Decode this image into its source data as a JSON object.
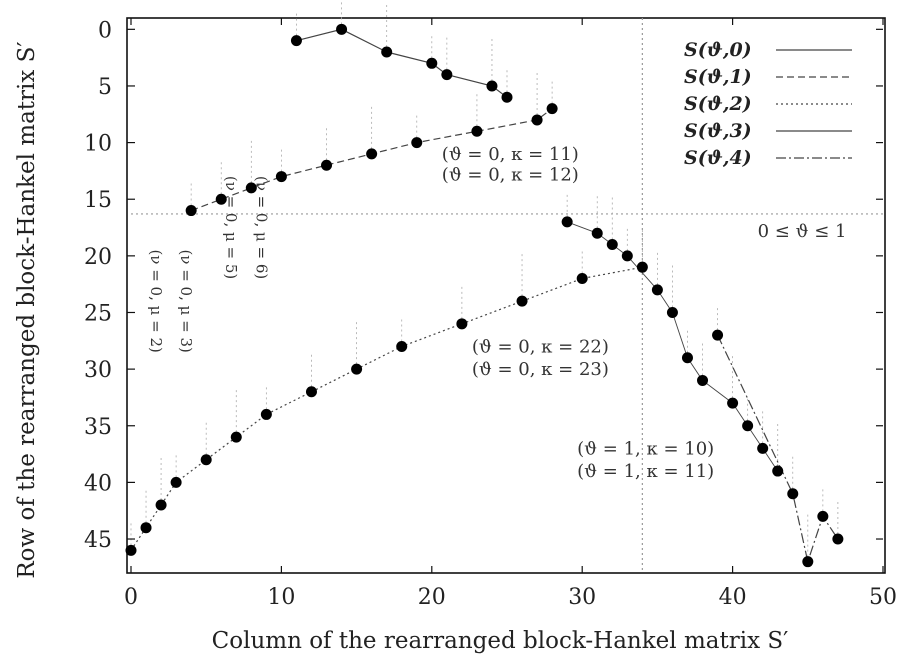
{
  "chart_data": {
    "type": "scatter",
    "xlabel": "Column of the rearranged block-Hankel matrix S′",
    "ylabel": "Row of the rearranged block-Hankel matrix S′",
    "xlim": [
      0,
      50
    ],
    "ylim": [
      48,
      -1
    ],
    "y_inverted": true,
    "grid": false,
    "legend_position": "top-right",
    "x_ticks": [
      "0",
      "10",
      "20",
      "30",
      "40",
      "50"
    ],
    "x_tick_values": [
      0,
      10,
      20,
      30,
      40,
      50
    ],
    "y_ticks": [
      "0",
      "5",
      "10",
      "15",
      "20",
      "25",
      "30",
      "35",
      "40",
      "45"
    ],
    "y_tick_values": [
      0,
      5,
      10,
      15,
      20,
      25,
      30,
      35,
      40,
      45
    ],
    "series": [
      {
        "name": "S(ϑ,0)",
        "style": "solid",
        "points": [
          [
            11,
            1
          ],
          [
            14,
            0
          ],
          [
            17,
            2
          ],
          [
            20,
            3
          ],
          [
            21,
            4
          ],
          [
            24,
            5
          ],
          [
            25,
            6
          ]
        ]
      },
      {
        "name": "S(ϑ,1)",
        "style": "dashed",
        "points": [
          [
            4,
            16
          ],
          [
            6,
            15
          ],
          [
            8,
            14
          ],
          [
            10,
            13
          ],
          [
            13,
            12
          ],
          [
            16,
            11
          ],
          [
            19,
            10
          ],
          [
            23,
            9
          ],
          [
            27,
            8
          ],
          [
            28,
            7
          ]
        ]
      },
      {
        "name": "S(ϑ,2)",
        "style": "dotted",
        "points": [
          [
            0,
            46
          ],
          [
            1,
            44
          ],
          [
            2,
            42
          ],
          [
            3,
            40
          ],
          [
            5,
            38
          ],
          [
            7,
            36
          ],
          [
            9,
            34
          ],
          [
            12,
            32
          ],
          [
            15,
            30
          ],
          [
            18,
            28
          ],
          [
            22,
            26
          ],
          [
            26,
            24
          ],
          [
            30,
            22
          ],
          [
            34,
            21
          ]
        ]
      },
      {
        "name": "S(ϑ,3)",
        "style": "thin-solid",
        "points": [
          [
            29,
            17
          ],
          [
            31,
            18
          ],
          [
            32,
            19
          ],
          [
            33,
            20
          ],
          [
            35,
            23
          ],
          [
            36,
            25
          ],
          [
            37,
            29
          ],
          [
            38,
            31
          ],
          [
            40,
            33
          ],
          [
            41,
            35
          ],
          [
            42,
            37
          ],
          [
            43,
            39
          ]
        ]
      },
      {
        "name": "S(ϑ,4)",
        "style": "dash-dot",
        "points": [
          [
            39,
            27
          ],
          [
            44,
            41
          ],
          [
            45,
            47
          ],
          [
            46,
            43
          ],
          [
            47,
            45
          ]
        ]
      }
    ],
    "annotations": [
      {
        "text": "(ϑ = 0, κ = 11)",
        "x": 20,
        "y": 11
      },
      {
        "text": "(ϑ = 0, κ = 12)",
        "x": 20,
        "y": 12.8
      },
      {
        "text": "(ϑ = 0, κ = 22)",
        "x": 22,
        "y": 28
      },
      {
        "text": "(ϑ = 0, κ = 23)",
        "x": 22,
        "y": 30
      },
      {
        "text": "(ϑ = 1, κ = 10)",
        "x": 29,
        "y": 37
      },
      {
        "text": "(ϑ = 1, κ = 11)",
        "x": 29,
        "y": 39
      },
      {
        "text": "0 ≤ ϑ ≤ 1",
        "x": 41,
        "y": 17.8
      },
      {
        "text": "(ν = 0, μ = 2)",
        "x": 1,
        "y": 24,
        "vertical": true
      },
      {
        "text": "(ν = 0, μ = 3)",
        "x": 3,
        "y": 24,
        "vertical": true
      },
      {
        "text": "(ν = 0, μ = 5)",
        "x": 6,
        "y": 17.5,
        "vertical": true
      },
      {
        "text": "(ν = 0, μ = 6)",
        "x": 8,
        "y": 17.5,
        "vertical": true
      }
    ],
    "reference_lines": [
      {
        "orientation": "horizontal",
        "y": 16.3,
        "style": "dotted"
      },
      {
        "orientation": "vertical",
        "x": 34,
        "style": "dotted"
      }
    ]
  }
}
